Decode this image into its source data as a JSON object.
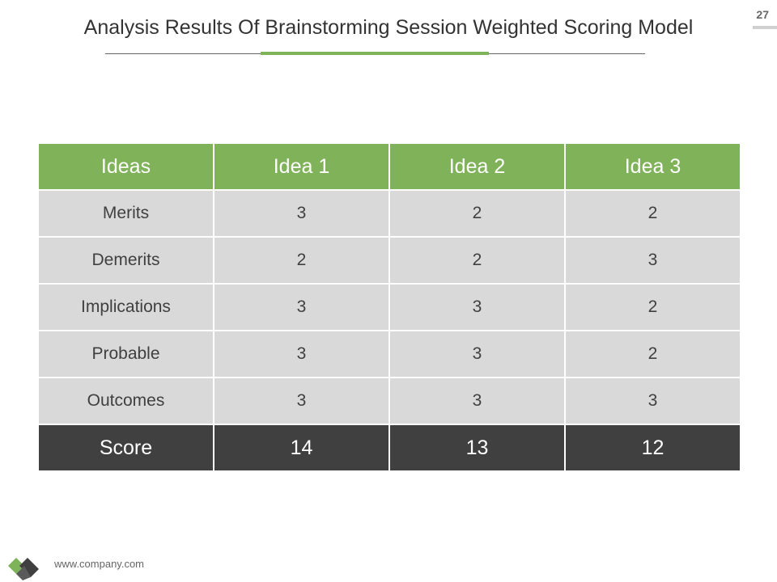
{
  "page_number": "27",
  "title": "Analysis Results Of Brainstorming Session Weighted Scoring Model",
  "table": {
    "header": [
      "Ideas",
      "Idea 1",
      "Idea 2",
      "Idea 3"
    ],
    "rows": [
      [
        "Merits",
        3,
        2,
        2
      ],
      [
        "Demerits",
        2,
        2,
        3
      ],
      [
        "Implications",
        3,
        3,
        2
      ],
      [
        "Probable",
        3,
        3,
        2
      ],
      [
        "Outcomes",
        3,
        3,
        3
      ]
    ],
    "footer": [
      "Score",
      14,
      13,
      12
    ]
  },
  "footer_text": "www.company.com"
}
